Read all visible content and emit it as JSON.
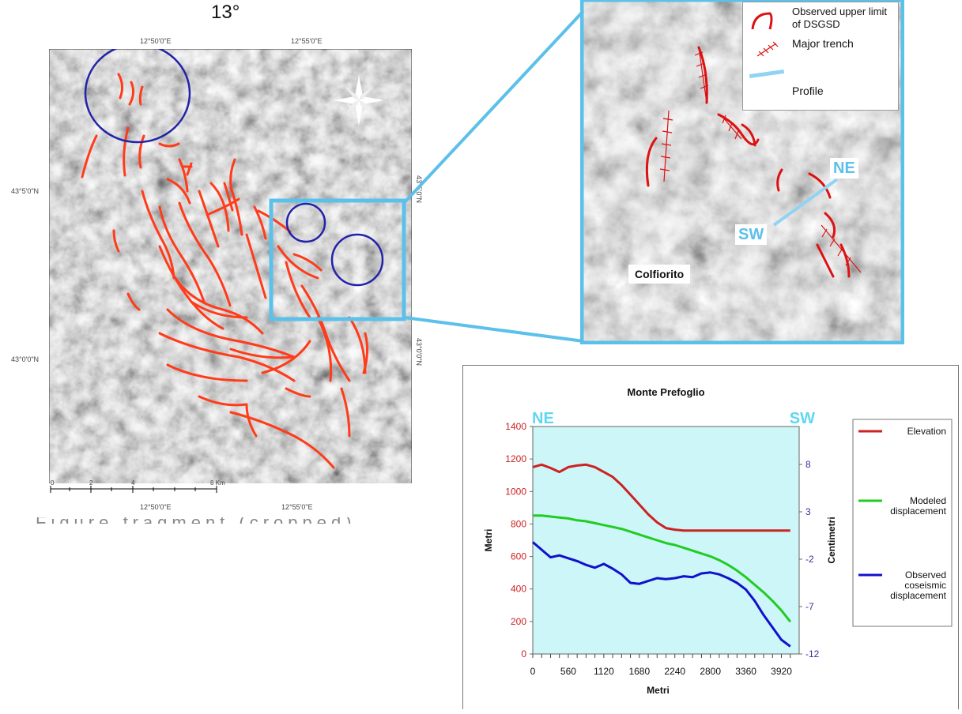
{
  "top_fragment": "13°",
  "caption_fragment": "Figure fragment (cropped)",
  "map": {
    "coords_top": [
      "12°50'0\"E",
      "12°55'0\"E"
    ],
    "coords_bottom": [
      "12°50'0\"E",
      "12°55'0\"E"
    ],
    "coords_left": [
      "43°5'0\"N",
      "43°0'0\"N"
    ],
    "coords_right": [
      "43°5'0\"N",
      "43°0'0\"N"
    ],
    "scale_ticks": [
      "0",
      "2",
      "4",
      "8 Km"
    ],
    "colors": {
      "dsgsd": "#ff3b1a",
      "circle": "#2222aa",
      "highlight": "#5bc0ea"
    }
  },
  "inset": {
    "legend": {
      "dsgsd": "Observed upper limit of DSGSD",
      "trench": "Major trench",
      "profile": "Profile"
    },
    "labels": {
      "ne": "NE",
      "sw": "SW",
      "place": "Colfiorito"
    }
  },
  "chart_data": {
    "type": "line",
    "title": "Monte Prefoglio",
    "xlabel": "Metri",
    "ylabel": "Metri",
    "y2label": "Centimetri",
    "corner_left": "NE",
    "corner_right": "SW",
    "xlim": [
      0,
      4200
    ],
    "ylim": [
      0,
      1400
    ],
    "y2lim": [
      -12,
      12
    ],
    "x_ticks": [
      "0",
      "560",
      "1120",
      "1680",
      "2240",
      "2800",
      "3360",
      "3920"
    ],
    "y_ticks": [
      "0",
      "200",
      "400",
      "600",
      "800",
      "1000",
      "1200",
      "1400"
    ],
    "y2_ticks": [
      "-12",
      "-7",
      "-2",
      "3",
      "8"
    ],
    "x": [
      0,
      140,
      280,
      420,
      560,
      700,
      840,
      980,
      1120,
      1260,
      1400,
      1540,
      1680,
      1820,
      1960,
      2100,
      2240,
      2380,
      2520,
      2660,
      2800,
      2940,
      3080,
      3220,
      3360,
      3500,
      3640,
      3780,
      3920,
      4060
    ],
    "series": [
      {
        "name": "Elevation",
        "color": "#cc2222",
        "axis": "left",
        "values": [
          1150,
          1165,
          1145,
          1120,
          1150,
          1160,
          1165,
          1150,
          1120,
          1090,
          1040,
          980,
          920,
          860,
          810,
          775,
          765,
          760,
          760,
          760,
          760,
          760,
          760,
          760,
          760,
          760,
          760,
          760,
          760,
          760
        ]
      },
      {
        "name": "Modeled displacement",
        "color": "#22cc22",
        "axis": "right",
        "values": [
          2.6,
          2.6,
          2.5,
          2.4,
          2.3,
          2.1,
          2.0,
          1.8,
          1.6,
          1.4,
          1.2,
          0.9,
          0.6,
          0.3,
          0.0,
          -0.3,
          -0.5,
          -0.8,
          -1.1,
          -1.4,
          -1.7,
          -2.1,
          -2.6,
          -3.2,
          -3.9,
          -4.7,
          -5.5,
          -6.4,
          -7.4,
          -8.6
        ]
      },
      {
        "name": "Observed coseismic displacement",
        "color": "#1111cc",
        "axis": "right",
        "values": [
          -0.2,
          -1.0,
          -1.8,
          -1.6,
          -1.9,
          -2.2,
          -2.6,
          -2.9,
          -2.5,
          -3.0,
          -3.6,
          -4.5,
          -4.6,
          -4.3,
          -4.0,
          -4.1,
          -4.0,
          -3.8,
          -3.9,
          -3.5,
          -3.4,
          -3.6,
          -4.0,
          -4.5,
          -5.2,
          -6.4,
          -7.9,
          -9.2,
          -10.5,
          -11.2
        ]
      }
    ],
    "legend": "right"
  }
}
